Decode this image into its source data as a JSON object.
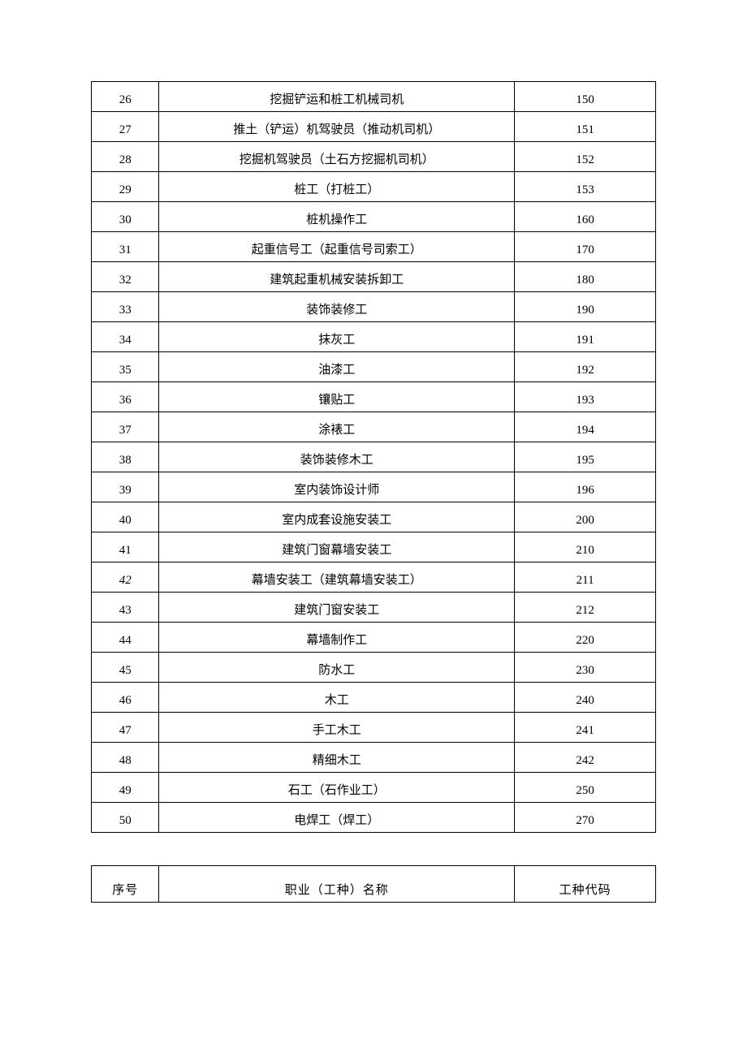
{
  "table1": {
    "rows": [
      {
        "seq": "26",
        "name": "挖掘铲运和桩工机械司机",
        "code": "150",
        "seqItalic": false
      },
      {
        "seq": "27",
        "name": "推土（铲运）机驾驶员（推动机司机）",
        "code": "151",
        "seqItalic": false
      },
      {
        "seq": "28",
        "name": "挖掘机驾驶员（土石方挖掘机司机）",
        "code": "152",
        "seqItalic": false
      },
      {
        "seq": "29",
        "name": "桩工（打桩工）",
        "code": "153",
        "seqItalic": false
      },
      {
        "seq": "30",
        "name": "桩机操作工",
        "code": "160",
        "seqItalic": false
      },
      {
        "seq": "31",
        "name": "起重信号工（起重信号司索工）",
        "code": "170",
        "seqItalic": false
      },
      {
        "seq": "32",
        "name": "建筑起重机械安装拆卸工",
        "code": "180",
        "seqItalic": false
      },
      {
        "seq": "33",
        "name": "装饰装修工",
        "code": "190",
        "seqItalic": false
      },
      {
        "seq": "34",
        "name": "抹灰工",
        "code": "191",
        "seqItalic": false
      },
      {
        "seq": "35",
        "name": "油漆工",
        "code": "192",
        "seqItalic": false
      },
      {
        "seq": "36",
        "name": "镶贴工",
        "code": "193",
        "seqItalic": false
      },
      {
        "seq": "37",
        "name": "涂裱工",
        "code": "194",
        "seqItalic": false
      },
      {
        "seq": "38",
        "name": "装饰装修木工",
        "code": "195",
        "seqItalic": false
      },
      {
        "seq": "39",
        "name": "室内装饰设计师",
        "code": "196",
        "seqItalic": false
      },
      {
        "seq": "40",
        "name": "室内成套设施安装工",
        "code": "200",
        "seqItalic": false
      },
      {
        "seq": "41",
        "name": "建筑门窗幕墙安装工",
        "code": "210",
        "seqItalic": false
      },
      {
        "seq": "42",
        "name": "幕墙安装工（建筑幕墙安装工）",
        "code": "211",
        "seqItalic": true
      },
      {
        "seq": "43",
        "name": "建筑门窗安装工",
        "code": "212",
        "seqItalic": false
      },
      {
        "seq": "44",
        "name": "幕墙制作工",
        "code": "220",
        "seqItalic": false
      },
      {
        "seq": "45",
        "name": "防水工",
        "code": "230",
        "seqItalic": false
      },
      {
        "seq": "46",
        "name": "木工",
        "code": "240",
        "seqItalic": false
      },
      {
        "seq": "47",
        "name": "手工木工",
        "code": "241",
        "seqItalic": false
      },
      {
        "seq": "48",
        "name": "精细木工",
        "code": "242",
        "seqItalic": false
      },
      {
        "seq": "49",
        "name": "石工（石作业工）",
        "code": "250",
        "seqItalic": false
      },
      {
        "seq": "50",
        "name": "电焊工（焊工）",
        "code": "270",
        "seqItalic": false
      }
    ]
  },
  "table2": {
    "header": {
      "seq": "序号",
      "name": "职业（工种）名称",
      "code": "工种代码"
    }
  }
}
